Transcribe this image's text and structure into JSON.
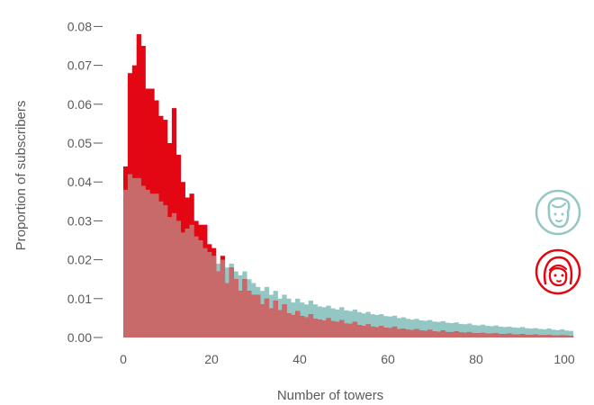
{
  "chart_data": {
    "type": "bar",
    "subtype": "overlapping-histogram",
    "xlabel": "Number of towers",
    "ylabel": "Proportion of subscribers",
    "xlim": [
      0,
      102
    ],
    "ylim": [
      0,
      0.08
    ],
    "x_ticks": [
      "0",
      "20",
      "40",
      "60",
      "80",
      "100"
    ],
    "y_ticks": [
      "0.00",
      "0.01",
      "0.02",
      "0.03",
      "0.04",
      "0.05",
      "0.06",
      "0.07",
      "0.08"
    ],
    "bin_width": 1,
    "legend_icons": [
      "male-face-icon",
      "female-face-icon"
    ],
    "colors": {
      "teal": "#94c7c4",
      "red": "#e30613",
      "overlap": "#c86a6a",
      "axis_text": "#5a5a5a"
    },
    "series": [
      {
        "icon": "male-face-icon",
        "color": "#94c7c4",
        "x": [
          0,
          1,
          2,
          3,
          4,
          5,
          6,
          7,
          8,
          9,
          10,
          11,
          12,
          13,
          14,
          15,
          16,
          17,
          18,
          19,
          20,
          21,
          22,
          23,
          24,
          25,
          26,
          27,
          28,
          29,
          30,
          31,
          32,
          33,
          34,
          35,
          36,
          37,
          38,
          39,
          40,
          41,
          42,
          43,
          44,
          45,
          46,
          47,
          48,
          49,
          50,
          51,
          52,
          53,
          54,
          55,
          56,
          57,
          58,
          59,
          60,
          61,
          62,
          63,
          64,
          65,
          66,
          67,
          68,
          69,
          70,
          71,
          72,
          73,
          74,
          75,
          76,
          77,
          78,
          79,
          80,
          81,
          82,
          83,
          84,
          85,
          86,
          87,
          88,
          89,
          90,
          91,
          92,
          93,
          94,
          95,
          96,
          97,
          98,
          99,
          100,
          101
        ],
        "values": [
          0.038,
          0.042,
          0.041,
          0.041,
          0.039,
          0.038,
          0.037,
          0.037,
          0.035,
          0.034,
          0.031,
          0.032,
          0.03,
          0.027,
          0.028,
          0.029,
          0.026,
          0.025,
          0.023,
          0.022,
          0.021,
          0.019,
          0.02,
          0.018,
          0.019,
          0.017,
          0.016,
          0.017,
          0.015,
          0.014,
          0.013,
          0.012,
          0.013,
          0.011,
          0.012,
          0.01,
          0.011,
          0.01,
          0.009,
          0.01,
          0.009,
          0.0085,
          0.0095,
          0.0085,
          0.008,
          0.0078,
          0.0082,
          0.0075,
          0.0072,
          0.0078,
          0.007,
          0.0068,
          0.0072,
          0.0065,
          0.0062,
          0.0066,
          0.006,
          0.0058,
          0.006,
          0.0055,
          0.0054,
          0.0056,
          0.005,
          0.0052,
          0.0048,
          0.0046,
          0.0048,
          0.0044,
          0.0043,
          0.0045,
          0.0041,
          0.004,
          0.0042,
          0.0038,
          0.0037,
          0.0039,
          0.0035,
          0.0034,
          0.0036,
          0.0032,
          0.0031,
          0.0033,
          0.003,
          0.0029,
          0.0031,
          0.0028,
          0.0027,
          0.0028,
          0.0026,
          0.0025,
          0.0027,
          0.0024,
          0.0023,
          0.0024,
          0.0022,
          0.0021,
          0.0023,
          0.002,
          0.0019,
          0.0021,
          0.0018,
          0.0017
        ]
      },
      {
        "icon": "female-face-icon",
        "color": "#e30613",
        "x": [
          0,
          1,
          2,
          3,
          4,
          5,
          6,
          7,
          8,
          9,
          10,
          11,
          12,
          13,
          14,
          15,
          16,
          17,
          18,
          19,
          20,
          21,
          22,
          23,
          24,
          25,
          26,
          27,
          28,
          29,
          30,
          31,
          32,
          33,
          34,
          35,
          36,
          37,
          38,
          39,
          40,
          41,
          42,
          43,
          44,
          45,
          46,
          47,
          48,
          49,
          50,
          51,
          52,
          53,
          54,
          55,
          56,
          57,
          58,
          59,
          60,
          61,
          62,
          63,
          64,
          65,
          66,
          67,
          68,
          69,
          70,
          71,
          72,
          73,
          74,
          75,
          76,
          77,
          78,
          79,
          80,
          81,
          82,
          83,
          84,
          85,
          86,
          87,
          88,
          89,
          90,
          91,
          92,
          93,
          94,
          95,
          96,
          97,
          98,
          99,
          100,
          101
        ],
        "values": [
          0.044,
          0.068,
          0.07,
          0.078,
          0.075,
          0.064,
          0.064,
          0.061,
          0.057,
          0.056,
          0.05,
          0.059,
          0.047,
          0.04,
          0.036,
          0.037,
          0.03,
          0.029,
          0.029,
          0.024,
          0.023,
          0.017,
          0.021,
          0.014,
          0.018,
          0.015,
          0.012,
          0.015,
          0.012,
          0.011,
          0.011,
          0.0085,
          0.01,
          0.0075,
          0.0095,
          0.007,
          0.0085,
          0.0062,
          0.0058,
          0.0068,
          0.0055,
          0.0052,
          0.006,
          0.0048,
          0.0046,
          0.0044,
          0.005,
          0.0042,
          0.004,
          0.0045,
          0.0036,
          0.0035,
          0.004,
          0.0032,
          0.003,
          0.0034,
          0.0028,
          0.0026,
          0.003,
          0.0025,
          0.0024,
          0.0028,
          0.0022,
          0.0023,
          0.002,
          0.0019,
          0.0022,
          0.0018,
          0.0017,
          0.002,
          0.0016,
          0.0015,
          0.0018,
          0.0014,
          0.0014,
          0.0016,
          0.0013,
          0.0012,
          0.0014,
          0.0011,
          0.0011,
          0.0012,
          0.001,
          0.001,
          0.0011,
          0.0009,
          0.0009,
          0.001,
          0.0008,
          0.0008,
          0.0009,
          0.0007,
          0.0007,
          0.0008,
          0.0006,
          0.0006,
          0.0007,
          0.0005,
          0.0005,
          0.0006,
          0.0005,
          0.0004
        ]
      }
    ]
  }
}
